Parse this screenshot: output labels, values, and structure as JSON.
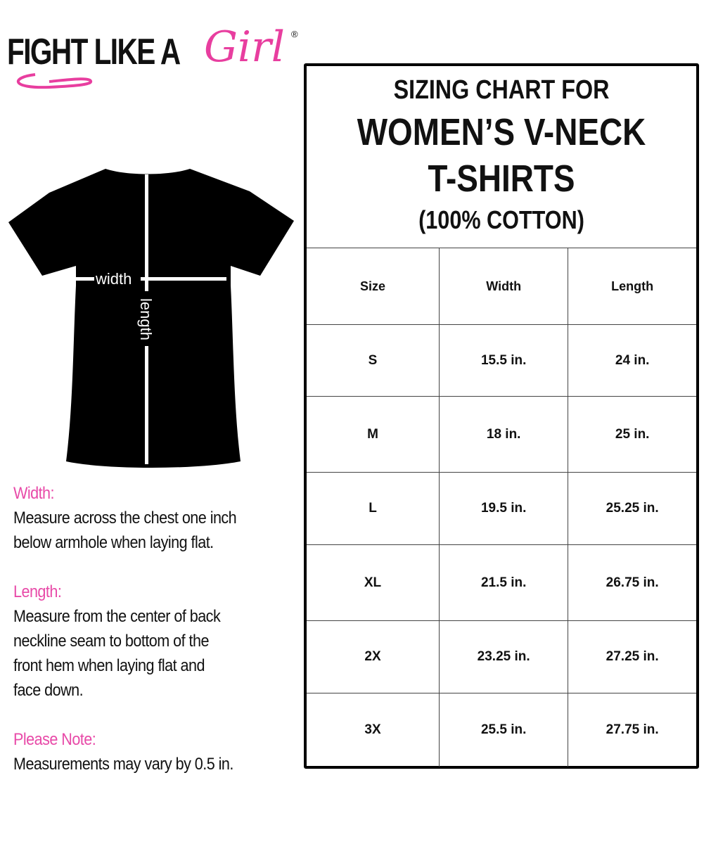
{
  "brand": {
    "logo_text": "FIGHT LIKE A",
    "logo_script": "Girl",
    "registered": "®",
    "pink": "#e84aa8"
  },
  "diagram": {
    "width_label": "width",
    "length_label": "length"
  },
  "notes": [
    {
      "title": "Width:",
      "lines": [
        "Measure across the chest one inch",
        "below armhole when laying flat."
      ]
    },
    {
      "title": "Length:",
      "lines": [
        "Measure from the center of back",
        "neckline seam to bottom of the",
        "front hem when laying flat and",
        "face down."
      ]
    },
    {
      "title": "Please Note:",
      "lines": [
        "Measurements may vary by 0.5 in."
      ]
    }
  ],
  "chart": {
    "title_line1": "SIZING CHART FOR",
    "title_line2": "WOMEN’S V-NECK",
    "title_line3": "T-SHIRTS",
    "title_line4": "(100% COTTON)",
    "columns": [
      "Size",
      "Width",
      "Length"
    ],
    "rows": [
      [
        "S",
        "15.5 in.",
        "24 in."
      ],
      [
        "M",
        "18 in.",
        "25 in."
      ],
      [
        "L",
        "19.5 in.",
        "25.25 in."
      ],
      [
        "XL",
        "21.5 in.",
        "26.75 in."
      ],
      [
        "2X",
        "23.25 in.",
        "27.25 in."
      ],
      [
        "3X",
        "25.5 in.",
        "27.75 in."
      ]
    ]
  }
}
